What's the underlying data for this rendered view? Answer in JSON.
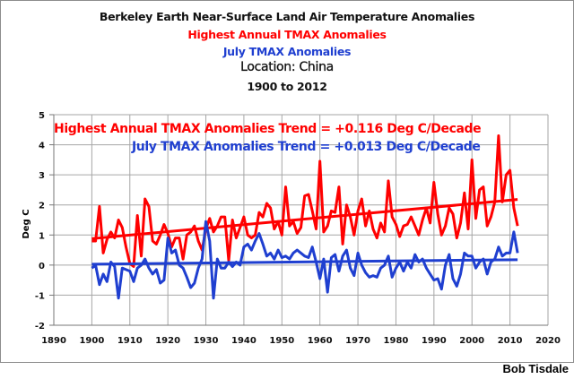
{
  "chart_data": {
    "type": "line",
    "title": "Berkeley Earth Near-Surface Land Air Temperature Anomalies",
    "subtitles": [
      {
        "text": "Highest Annual TMAX Anomalies",
        "color": "#ff0000"
      },
      {
        "text": "July TMAX Anomalies",
        "color": "#1f3fd0"
      },
      {
        "text": "Location: China",
        "color": "#111111"
      },
      {
        "text": "1900 to 2012",
        "color": "#111111"
      }
    ],
    "xlabel": "",
    "ylabel": "Deg C",
    "xlim": [
      1890,
      2020
    ],
    "ylim": [
      -2,
      5
    ],
    "xticks": [
      1890,
      1900,
      1910,
      1920,
      1930,
      1940,
      1950,
      1960,
      1970,
      1980,
      1990,
      2000,
      2010,
      2020
    ],
    "yticks": [
      -2,
      -1,
      0,
      1,
      2,
      3,
      4,
      5
    ],
    "grid": true,
    "x_start": 1900,
    "x_end": 2012,
    "annotations": [
      {
        "text": "Highest Annual TMAX Anomalies Trend = +0.116 Deg C/Decade",
        "color": "#ff0000"
      },
      {
        "text": "July TMAX Anomalies Trend = +0.013 Deg C/Decade",
        "color": "#1f3fd0"
      }
    ],
    "series": [
      {
        "name": "Highest Annual TMAX Anomalies",
        "color": "#ff0000",
        "trend": {
          "slope_per_decade": 0.116,
          "start": 0.88,
          "end": 2.18
        },
        "values": [
          0.8,
          0.8,
          1.95,
          0.4,
          0.85,
          1.1,
          0.9,
          1.5,
          1.25,
          0.6,
          0.05,
          -0.05,
          1.65,
          0.3,
          2.2,
          1.95,
          0.8,
          0.7,
          1.0,
          1.35,
          1.05,
          0.6,
          0.9,
          0.9,
          0.2,
          1.0,
          1.1,
          1.3,
          0.8,
          0.5,
          1.2,
          1.55,
          1.1,
          1.3,
          1.6,
          1.6,
          0.15,
          1.5,
          0.9,
          1.25,
          1.6,
          1.0,
          0.9,
          1.0,
          1.75,
          1.6,
          2.05,
          1.9,
          1.2,
          1.45,
          1.0,
          2.6,
          1.3,
          1.45,
          1.05,
          1.25,
          2.3,
          2.35,
          1.8,
          1.2,
          3.45,
          1.1,
          1.3,
          1.8,
          1.75,
          2.6,
          0.7,
          2.0,
          1.6,
          1.0,
          1.8,
          2.2,
          1.3,
          1.8,
          1.2,
          0.9,
          1.4,
          1.1,
          2.8,
          1.6,
          1.35,
          0.95,
          1.3,
          1.35,
          1.6,
          1.3,
          1.0,
          1.5,
          1.9,
          1.4,
          2.75,
          1.7,
          1.0,
          1.3,
          1.9,
          1.7,
          0.9,
          1.4,
          2.4,
          1.2,
          3.5,
          1.55,
          2.5,
          2.6,
          1.3,
          1.6,
          2.1,
          4.3,
          2.1,
          3.0,
          3.15,
          1.9,
          1.3
        ]
      },
      {
        "name": "July TMAX Anomalies",
        "color": "#1f3fd0",
        "trend": {
          "slope_per_decade": 0.013,
          "start": 0.03,
          "end": 0.18
        },
        "values": [
          -0.1,
          0.0,
          -0.65,
          -0.3,
          -0.55,
          0.1,
          -0.05,
          -1.1,
          -0.1,
          -0.15,
          -0.2,
          -0.55,
          -0.1,
          0.0,
          0.2,
          -0.1,
          -0.3,
          -0.15,
          -0.6,
          -0.5,
          0.9,
          0.4,
          0.5,
          0.0,
          -0.1,
          -0.4,
          -0.75,
          -0.6,
          -0.1,
          0.2,
          1.45,
          0.8,
          -1.1,
          0.2,
          -0.1,
          -0.1,
          0.1,
          -0.05,
          0.1,
          0.0,
          0.6,
          0.7,
          0.5,
          0.8,
          1.05,
          0.7,
          0.3,
          0.4,
          0.2,
          0.5,
          0.25,
          0.3,
          0.2,
          0.4,
          0.5,
          0.4,
          0.3,
          0.25,
          0.6,
          0.1,
          -0.45,
          0.2,
          -0.9,
          0.25,
          0.35,
          -0.2,
          0.3,
          0.5,
          -0.1,
          -0.35,
          0.4,
          0.0,
          -0.25,
          -0.4,
          -0.35,
          -0.4,
          -0.1,
          0.0,
          0.3,
          -0.4,
          -0.1,
          0.1,
          -0.2,
          0.1,
          -0.1,
          0.35,
          0.1,
          0.2,
          -0.1,
          -0.3,
          -0.5,
          -0.45,
          -0.8,
          0.0,
          0.35,
          -0.45,
          -0.7,
          -0.3,
          0.4,
          0.3,
          0.3,
          -0.1,
          0.1,
          0.2,
          -0.3,
          0.1,
          0.2,
          0.6,
          0.3,
          0.4,
          0.4,
          1.1,
          0.4
        ]
      }
    ]
  },
  "footer": {
    "credit": "Bob Tisdale"
  }
}
